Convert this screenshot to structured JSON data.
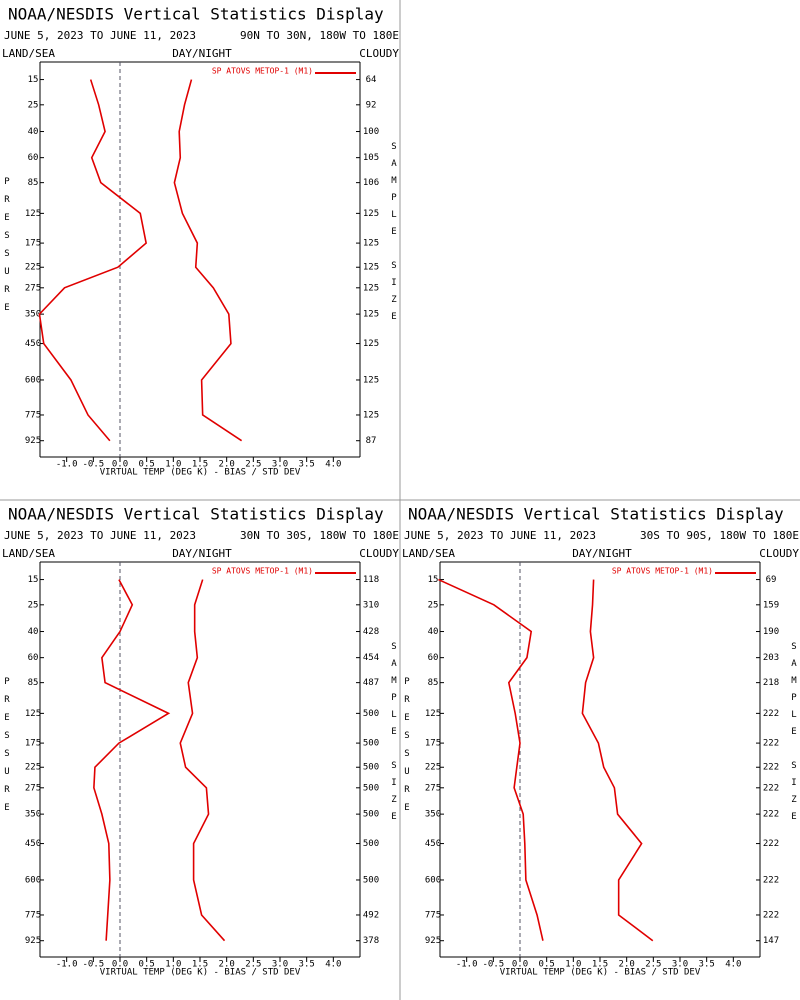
{
  "chart_data": [
    {
      "type": "line",
      "title": "NOAA/NESDIS Vertical Statistics Display",
      "subtitle": "JUNE 5, 2023 TO JUNE 11, 2023",
      "region": "90N TO 30N, 180W TO 180E",
      "land_sea": "LAND/SEA",
      "day_night": "DAY/NIGHT",
      "cloudy": "CLOUDY",
      "ylabel": "PRESSURE",
      "y2label": "SAMPLE SIZE",
      "xlabel": "VIRTUAL TEMP (DEG K) - BIAS / STD DEV",
      "levels": [
        15,
        25,
        40,
        60,
        85,
        125,
        175,
        225,
        275,
        350,
        450,
        600,
        775,
        925
      ],
      "sample_size": [
        64,
        92,
        100,
        105,
        106,
        125,
        125,
        125,
        125,
        125,
        125,
        125,
        125,
        87
      ],
      "series": [
        {
          "name": "SP ATOVS METOP-1 (M1)",
          "color": "#e00000",
          "values": [
            -0.55,
            -0.4,
            -0.28,
            -0.53,
            -0.36,
            0.38,
            0.49,
            -0.04,
            -1.04,
            -1.51,
            -1.43,
            -0.92,
            -0.6,
            -0.19
          ],
          "std_dev": [
            1.34,
            1.21,
            1.11,
            1.13,
            1.02,
            1.17,
            1.45,
            1.42,
            1.75,
            2.04,
            2.08,
            1.53,
            1.55,
            2.28
          ]
        }
      ],
      "xlim": [
        -1.5,
        4.5
      ],
      "xticks": [
        {
          "value": -1,
          "label": "-1.0"
        },
        {
          "value": -0.5,
          "label": "-0.5"
        },
        {
          "value": 0,
          "label": "0.0"
        },
        {
          "value": 0.5,
          "label": "0.5"
        },
        {
          "value": 1,
          "label": "1.0"
        },
        {
          "value": 1.5,
          "label": "1.5"
        },
        {
          "value": 2,
          "label": "2.0"
        },
        {
          "value": 2.5,
          "label": "2.5"
        },
        {
          "value": 3,
          "label": "3.0"
        },
        {
          "value": 3.5,
          "label": "3.5"
        },
        {
          "value": 4,
          "label": "4.0"
        }
      ],
      "ylim": [
        10,
        1030
      ],
      "y_exponent": 0.286,
      "y_inverted": true,
      "zero_line": true
    },
    {
      "type": "line",
      "title": "NOAA/NESDIS Vertical Statistics Display",
      "subtitle": "JUNE 5, 2023 TO JUNE 11, 2023",
      "region": "30N TO 30S, 180W TO 180E",
      "land_sea": "LAND/SEA",
      "day_night": "DAY/NIGHT",
      "cloudy": "CLOUDY",
      "ylabel": "PRESSURE",
      "y2label": "SAMPLE SIZE",
      "xlabel": "VIRTUAL TEMP (DEG K) - BIAS / STD DEV",
      "levels": [
        15,
        25,
        40,
        60,
        85,
        125,
        175,
        225,
        275,
        350,
        450,
        600,
        775,
        925
      ],
      "sample_size": [
        118,
        310,
        428,
        454,
        487,
        500,
        500,
        500,
        500,
        500,
        500,
        500,
        492,
        378
      ],
      "series": [
        {
          "name": "SP ATOVS METOP-1 (M1)",
          "color": "#e00000",
          "values": [
            -0.02,
            0.23,
            0.0,
            -0.34,
            -0.28,
            0.91,
            -0.02,
            -0.47,
            -0.49,
            -0.34,
            -0.21,
            -0.19,
            -0.23,
            -0.26
          ],
          "std_dev": [
            1.55,
            1.4,
            1.4,
            1.45,
            1.28,
            1.36,
            1.13,
            1.23,
            1.62,
            1.66,
            1.38,
            1.38,
            1.53,
            1.96
          ]
        }
      ],
      "xlim": [
        -1.5,
        4.5
      ],
      "xticks": [
        {
          "value": -1,
          "label": "-1.0"
        },
        {
          "value": -0.5,
          "label": "-0.5"
        },
        {
          "value": 0,
          "label": "0.0"
        },
        {
          "value": 0.5,
          "label": "0.5"
        },
        {
          "value": 1,
          "label": "1.0"
        },
        {
          "value": 1.5,
          "label": "1.5"
        },
        {
          "value": 2,
          "label": "2.0"
        },
        {
          "value": 2.5,
          "label": "2.5"
        },
        {
          "value": 3,
          "label": "3.0"
        },
        {
          "value": 3.5,
          "label": "3.5"
        },
        {
          "value": 4,
          "label": "4.0"
        }
      ],
      "ylim": [
        10,
        1030
      ],
      "y_exponent": 0.286,
      "y_inverted": true,
      "zero_line": true
    },
    {
      "type": "line",
      "title": "NOAA/NESDIS Vertical Statistics Display",
      "subtitle": "JUNE 5, 2023 TO JUNE 11, 2023",
      "region": "30S TO 90S, 180W TO 180E",
      "land_sea": "LAND/SEA",
      "day_night": "DAY/NIGHT",
      "cloudy": "CLOUDY",
      "ylabel": "PRESSURE",
      "y2label": "SAMPLE SIZE",
      "xlabel": "VIRTUAL TEMP (DEG K) - BIAS / STD DEV",
      "levels": [
        15,
        25,
        40,
        60,
        85,
        125,
        175,
        225,
        275,
        350,
        450,
        600,
        775,
        925
      ],
      "sample_size": [
        69,
        159,
        190,
        203,
        218,
        222,
        222,
        222,
        222,
        222,
        222,
        222,
        222,
        147
      ],
      "series": [
        {
          "name": "SP ATOVS METOP-1 (M1)",
          "color": "#e00000",
          "values": [
            -1.53,
            -0.49,
            0.21,
            0.13,
            -0.21,
            -0.09,
            0.0,
            -0.06,
            -0.11,
            0.06,
            0.09,
            0.11,
            0.32,
            0.43
          ],
          "std_dev": [
            1.38,
            1.36,
            1.32,
            1.38,
            1.23,
            1.17,
            1.47,
            1.57,
            1.77,
            1.83,
            2.28,
            1.85,
            1.85,
            2.49
          ]
        }
      ],
      "xlim": [
        -1.5,
        4.5
      ],
      "xticks": [
        {
          "value": -1,
          "label": "-1.0"
        },
        {
          "value": -0.5,
          "label": "-0.5"
        },
        {
          "value": 0,
          "label": "0.0"
        },
        {
          "value": 0.5,
          "label": "0.5"
        },
        {
          "value": 1,
          "label": "1.0"
        },
        {
          "value": 1.5,
          "label": "1.5"
        },
        {
          "value": 2,
          "label": "2.0"
        },
        {
          "value": 2.5,
          "label": "2.5"
        },
        {
          "value": 3,
          "label": "3.0"
        },
        {
          "value": 3.5,
          "label": "3.5"
        },
        {
          "value": 4,
          "label": "4.0"
        }
      ],
      "ylim": [
        10,
        1030
      ],
      "y_exponent": 0.286,
      "y_inverted": true,
      "zero_line": true
    }
  ]
}
